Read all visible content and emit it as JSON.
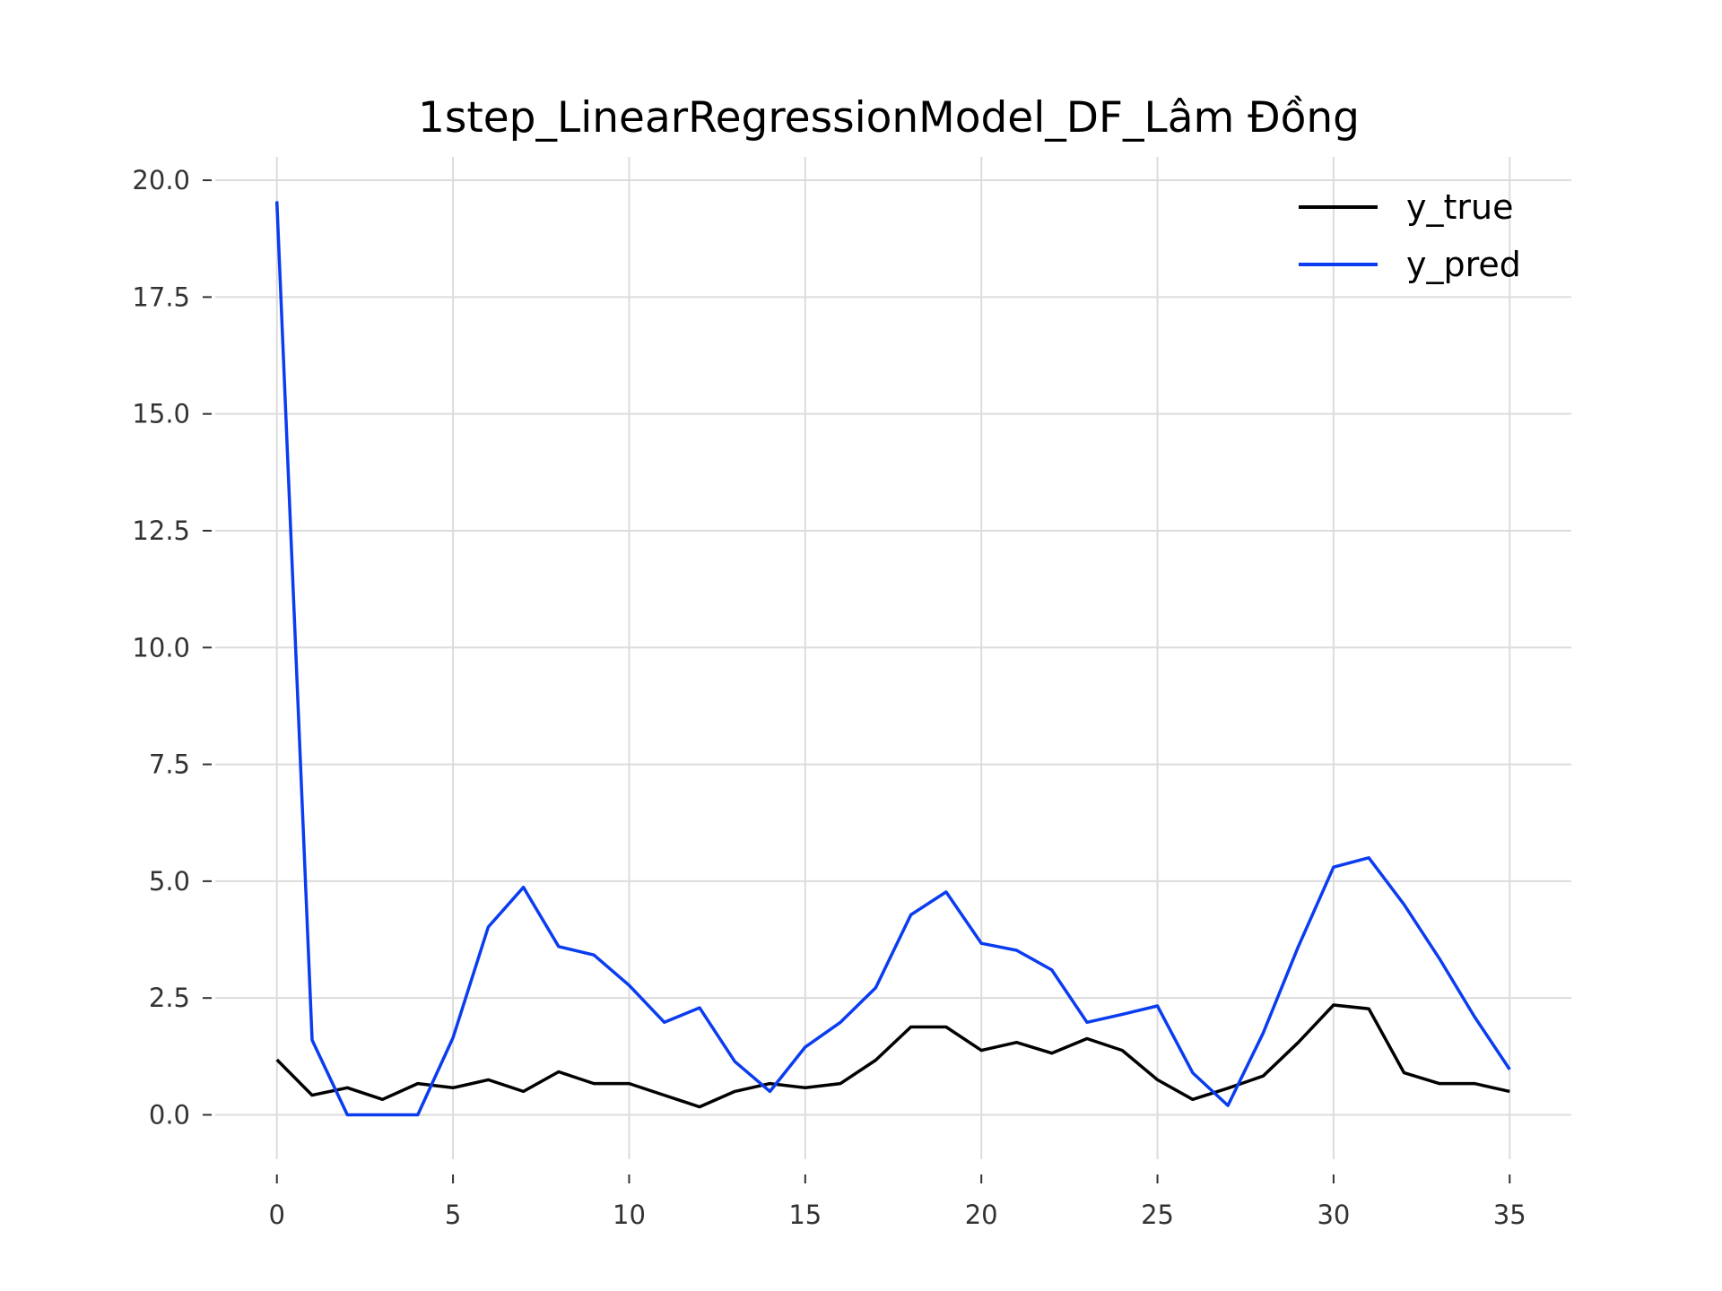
{
  "chart_data": {
    "type": "line",
    "title": "1step_LinearRegressionModel_DF_Lâm Đồng",
    "xlabel": "",
    "ylabel": "",
    "xlim": [
      -1.75,
      36.75
    ],
    "ylim": [
      -0.95,
      20.5
    ],
    "x_ticks": [
      0,
      5,
      10,
      15,
      20,
      25,
      30,
      35
    ],
    "x_tick_labels": [
      "0",
      "5",
      "10",
      "15",
      "20",
      "25",
      "30",
      "35"
    ],
    "y_ticks": [
      0,
      2.5,
      5,
      7.5,
      10,
      12.5,
      15,
      17.5,
      20
    ],
    "y_tick_labels": [
      "0.0",
      "2.5",
      "5.0",
      "7.5",
      "10.0",
      "12.5",
      "15.0",
      "17.5",
      "20.0"
    ],
    "grid": true,
    "legend_position": "top-right",
    "x": [
      0,
      1,
      2,
      3,
      4,
      5,
      6,
      7,
      8,
      9,
      10,
      11,
      12,
      13,
      14,
      15,
      16,
      17,
      18,
      19,
      20,
      21,
      22,
      23,
      24,
      25,
      26,
      27,
      28,
      29,
      30,
      31,
      32,
      33,
      34,
      35
    ],
    "series": [
      {
        "name": "y_true",
        "color": "#000000",
        "values": [
          1.18,
          0.42,
          0.58,
          0.33,
          0.67,
          0.58,
          0.75,
          0.5,
          0.92,
          0.67,
          0.67,
          0.42,
          0.17,
          0.5,
          0.67,
          0.58,
          0.67,
          1.17,
          1.88,
          1.88,
          1.38,
          1.55,
          1.32,
          1.63,
          1.38,
          0.75,
          0.33,
          0.57,
          0.83,
          1.55,
          2.35,
          2.27,
          0.9,
          0.67,
          0.67,
          0.5
        ]
      },
      {
        "name": "y_pred",
        "color": "#0a3cf0",
        "values": [
          19.55,
          1.6,
          0.0,
          0.0,
          0.0,
          1.65,
          4.02,
          4.87,
          3.6,
          3.42,
          2.77,
          1.98,
          2.29,
          1.14,
          0.5,
          1.45,
          1.98,
          2.72,
          4.28,
          4.77,
          3.67,
          3.52,
          3.1,
          1.98,
          2.15,
          2.33,
          0.9,
          0.2,
          1.75,
          3.6,
          5.3,
          5.5,
          4.5,
          3.35,
          2.1,
          0.97
        ]
      }
    ]
  }
}
